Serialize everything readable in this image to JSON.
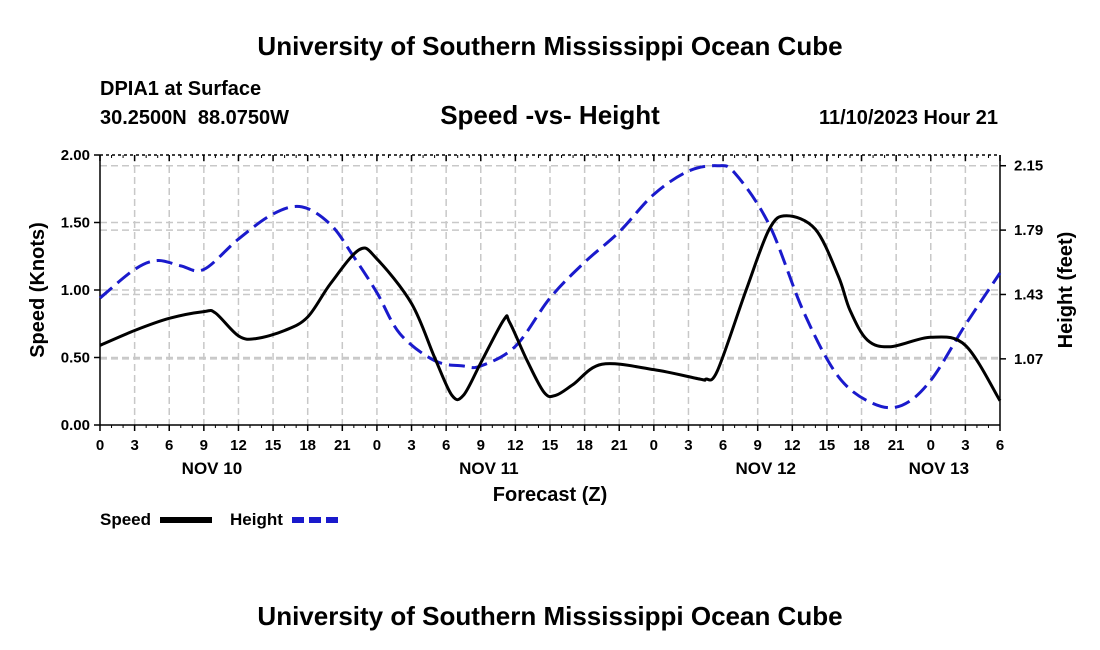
{
  "header": {
    "title": "University of Southern Mississippi Ocean Cube",
    "station": "DPIA1 at Surface",
    "coords": "30.2500N  88.0750W",
    "date": "11/10/2023 Hour 21",
    "footer": "University of Southern Mississippi Ocean Cube"
  },
  "chart_data": {
    "type": "line",
    "title": "Speed -vs- Height",
    "xlabel": "Forecast (Z)",
    "ylabel": "Speed (Knots)",
    "y2label": "Height (feet)",
    "x_unit": "forecast hours from NOV 10 00Z",
    "xlim": [
      0,
      78
    ],
    "ylim": [
      0,
      2.0
    ],
    "y2lim": [
      0.7,
      2.21
    ],
    "x_ticks": [
      0,
      3,
      6,
      9,
      12,
      15,
      18,
      21,
      24,
      27,
      30,
      33,
      36,
      39,
      42,
      45,
      48,
      51,
      54,
      57,
      60,
      63,
      66,
      69,
      72,
      75,
      78
    ],
    "x_tick_labels": [
      "0",
      "3",
      "6",
      "9",
      "12",
      "15",
      "18",
      "21",
      "0",
      "3",
      "6",
      "9",
      "12",
      "15",
      "18",
      "21",
      "0",
      "3",
      "6",
      "9",
      "12",
      "15",
      "18",
      "21",
      "0",
      "3",
      "6"
    ],
    "y_ticks": [
      0,
      0.5,
      1.0,
      1.5,
      2.0
    ],
    "y_tick_labels": [
      "0.00",
      "0.50",
      "1.00",
      "1.50",
      "2.00"
    ],
    "y2_ticks": [
      1.07,
      1.43,
      1.79,
      2.15
    ],
    "y2_tick_labels": [
      "1.07",
      "1.43",
      "1.79",
      "2.15"
    ],
    "date_labels": [
      {
        "text": "NOV 10",
        "x": 9.7
      },
      {
        "text": "NOV 11",
        "x": 33.7
      },
      {
        "text": "NOV 12",
        "x": 57.7
      },
      {
        "text": "NOV 13",
        "x": 72.7
      }
    ],
    "grid": true,
    "legend": [
      {
        "name": "Speed",
        "color": "#000000",
        "style": "solid"
      },
      {
        "name": "Height",
        "color": "#1a1acc",
        "style": "dashed"
      }
    ],
    "series": [
      {
        "name": "Speed",
        "axis": "left",
        "color": "#000000",
        "x": [
          0,
          3,
          6,
          9,
          10,
          12,
          13.5,
          16,
          18,
          20,
          22.5,
          24,
          27,
          29,
          30.5,
          31.5,
          33,
          35,
          35.5,
          37,
          38.5,
          39.5,
          41,
          43.5,
          48,
          52,
          52.5,
          53.5,
          56,
          58,
          59.5,
          62,
          64,
          65,
          66.5,
          68.5,
          72,
          75,
          78
        ],
        "y": [
          0.59,
          0.7,
          0.79,
          0.84,
          0.83,
          0.66,
          0.64,
          0.7,
          0.8,
          1.05,
          1.3,
          1.23,
          0.9,
          0.5,
          0.22,
          0.22,
          0.46,
          0.78,
          0.76,
          0.48,
          0.24,
          0.22,
          0.3,
          0.45,
          0.41,
          0.34,
          0.34,
          0.4,
          1.0,
          1.45,
          1.55,
          1.45,
          1.1,
          0.85,
          0.63,
          0.58,
          0.65,
          0.59,
          0.18
        ]
      },
      {
        "name": "Height",
        "axis": "right",
        "color": "#1a1acc",
        "x": [
          0,
          3,
          5,
          7,
          9,
          12,
          15,
          17.5,
          20,
          22,
          24,
          26,
          29,
          31.5,
          33,
          36,
          39,
          42,
          45,
          48,
          51,
          53.5,
          55,
          58,
          61,
          64,
          67,
          69.5,
          72,
          75,
          78
        ],
        "y": [
          1.41,
          1.57,
          1.62,
          1.59,
          1.57,
          1.74,
          1.88,
          1.92,
          1.82,
          1.64,
          1.44,
          1.21,
          1.06,
          1.03,
          1.03,
          1.14,
          1.41,
          1.61,
          1.78,
          1.99,
          2.12,
          2.15,
          2.11,
          1.82,
          1.33,
          0.97,
          0.82,
          0.81,
          0.95,
          1.26,
          1.55
        ]
      }
    ]
  }
}
